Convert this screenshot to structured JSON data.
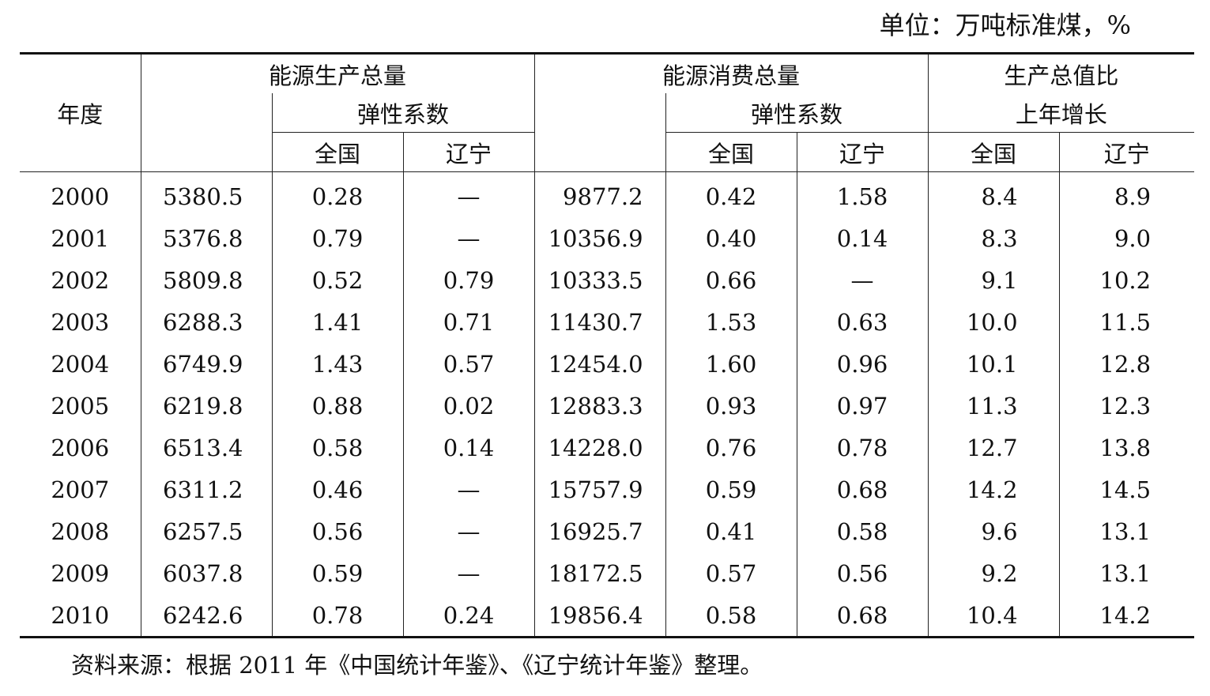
{
  "unit_note": "单位：万吨标准煤，%",
  "headers": {
    "year": "年度",
    "production_total": "能源生产总量",
    "consumption_total": "能源消费总量",
    "elasticity": "弹性系数",
    "gdp_line1": "生产总值比",
    "gdp_line2": "上年增长",
    "national": "全国",
    "liaoning": "辽宁"
  },
  "rows": [
    {
      "year": "2000",
      "prod": "5380.5",
      "prod_el_cn": "0.28",
      "prod_el_ln": "—",
      "cons": "9877.2",
      "cons_el_cn": "0.42",
      "cons_el_ln": "1.58",
      "gdp_cn": "8.4",
      "gdp_ln": "8.9"
    },
    {
      "year": "2001",
      "prod": "5376.8",
      "prod_el_cn": "0.79",
      "prod_el_ln": "—",
      "cons": "10356.9",
      "cons_el_cn": "0.40",
      "cons_el_ln": "0.14",
      "gdp_cn": "8.3",
      "gdp_ln": "9.0"
    },
    {
      "year": "2002",
      "prod": "5809.8",
      "prod_el_cn": "0.52",
      "prod_el_ln": "0.79",
      "cons": "10333.5",
      "cons_el_cn": "0.66",
      "cons_el_ln": "—",
      "gdp_cn": "9.1",
      "gdp_ln": "10.2"
    },
    {
      "year": "2003",
      "prod": "6288.3",
      "prod_el_cn": "1.41",
      "prod_el_ln": "0.71",
      "cons": "11430.7",
      "cons_el_cn": "1.53",
      "cons_el_ln": "0.63",
      "gdp_cn": "10.0",
      "gdp_ln": "11.5"
    },
    {
      "year": "2004",
      "prod": "6749.9",
      "prod_el_cn": "1.43",
      "prod_el_ln": "0.57",
      "cons": "12454.0",
      "cons_el_cn": "1.60",
      "cons_el_ln": "0.96",
      "gdp_cn": "10.1",
      "gdp_ln": "12.8"
    },
    {
      "year": "2005",
      "prod": "6219.8",
      "prod_el_cn": "0.88",
      "prod_el_ln": "0.02",
      "cons": "12883.3",
      "cons_el_cn": "0.93",
      "cons_el_ln": "0.97",
      "gdp_cn": "11.3",
      "gdp_ln": "12.3"
    },
    {
      "year": "2006",
      "prod": "6513.4",
      "prod_el_cn": "0.58",
      "prod_el_ln": "0.14",
      "cons": "14228.0",
      "cons_el_cn": "0.76",
      "cons_el_ln": "0.78",
      "gdp_cn": "12.7",
      "gdp_ln": "13.8"
    },
    {
      "year": "2007",
      "prod": "6311.2",
      "prod_el_cn": "0.46",
      "prod_el_ln": "—",
      "cons": "15757.9",
      "cons_el_cn": "0.59",
      "cons_el_ln": "0.68",
      "gdp_cn": "14.2",
      "gdp_ln": "14.5"
    },
    {
      "year": "2008",
      "prod": "6257.5",
      "prod_el_cn": "0.56",
      "prod_el_ln": "—",
      "cons": "16925.7",
      "cons_el_cn": "0.41",
      "cons_el_ln": "0.58",
      "gdp_cn": "9.6",
      "gdp_ln": "13.1"
    },
    {
      "year": "2009",
      "prod": "6037.8",
      "prod_el_cn": "0.59",
      "prod_el_ln": "—",
      "cons": "18172.5",
      "cons_el_cn": "0.57",
      "cons_el_ln": "0.56",
      "gdp_cn": "9.2",
      "gdp_ln": "13.1"
    },
    {
      "year": "2010",
      "prod": "6242.6",
      "prod_el_cn": "0.78",
      "prod_el_ln": "0.24",
      "cons": "19856.4",
      "cons_el_cn": "0.58",
      "cons_el_ln": "0.68",
      "gdp_cn": "10.4",
      "gdp_ln": "14.2"
    }
  ],
  "source_note": "资料来源：根据 2011 年《中国统计年鉴》、《辽宁统计年鉴》整理。"
}
